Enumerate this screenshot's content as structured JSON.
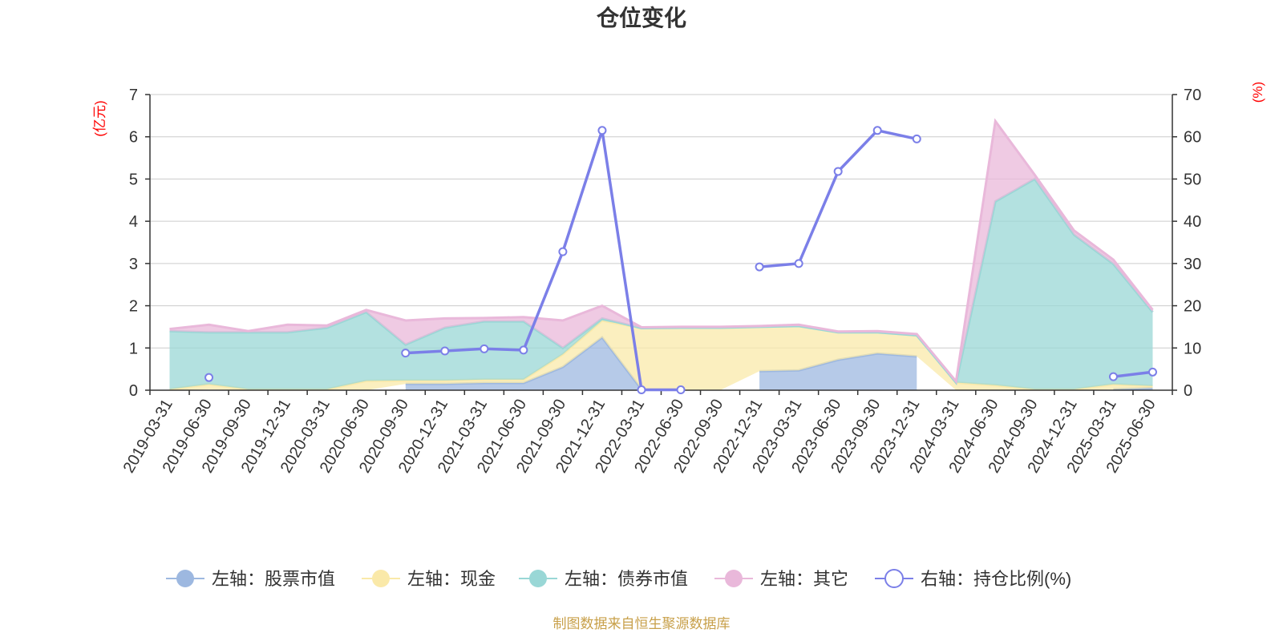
{
  "chart_data": {
    "type": "area",
    "title": "仓位变化",
    "left_unit": "(亿元)",
    "right_unit": "(%)",
    "left_ylim": [
      0,
      7
    ],
    "left_ticks": [
      "0",
      "1",
      "2",
      "3",
      "4",
      "5",
      "6",
      "7"
    ],
    "right_ylim": [
      0,
      70
    ],
    "right_ticks": [
      "0",
      "10",
      "20",
      "30",
      "40",
      "50",
      "60",
      "70"
    ],
    "categories": [
      "2019-03-31",
      "2019-06-30",
      "2019-09-30",
      "2019-12-31",
      "2020-03-31",
      "2020-06-30",
      "2020-09-30",
      "2020-12-31",
      "2021-03-31",
      "2021-06-30",
      "2021-09-30",
      "2021-12-31",
      "2022-03-31",
      "2022-06-30",
      "2022-09-30",
      "2022-12-31",
      "2023-03-31",
      "2023-06-30",
      "2023-09-30",
      "2023-12-31",
      "2024-03-31",
      "2024-06-30",
      "2024-09-30",
      "2024-12-31",
      "2025-03-31",
      "2025-06-30"
    ],
    "series": [
      {
        "name": "左轴：股票市值",
        "axis": "left",
        "color": "#9db8e0",
        "values": [
          null,
          0.02,
          null,
          null,
          null,
          null,
          0.15,
          0.15,
          0.17,
          0.17,
          0.55,
          1.25,
          0.02,
          null,
          null,
          0.45,
          0.47,
          0.72,
          0.87,
          0.8,
          null,
          null,
          null,
          null,
          0.02,
          0.05
        ]
      },
      {
        "name": "左轴：现金",
        "axis": "left",
        "color": "#fae9a9",
        "values": [
          0.02,
          0.12,
          0.02,
          0.02,
          0.02,
          0.22,
          0.08,
          0.08,
          0.08,
          0.08,
          0.3,
          0.4,
          1.45,
          1.48,
          1.48,
          1.05,
          1.05,
          0.65,
          0.5,
          0.5,
          0.18,
          0.12,
          0.02,
          0.02,
          0.12,
          0.05
        ]
      },
      {
        "name": "左轴：债券市值",
        "axis": "left",
        "color": "#99d7d6",
        "values": [
          1.38,
          1.23,
          1.35,
          1.35,
          1.46,
          1.63,
          0.85,
          1.25,
          1.38,
          1.38,
          0.15,
          0.05,
          0,
          0,
          0,
          0,
          0,
          0,
          0,
          0,
          0,
          4.35,
          4.98,
          3.66,
          2.85,
          1.75
        ]
      },
      {
        "name": "左轴：其它",
        "axis": "left",
        "color": "#e9b8da",
        "values": [
          0.05,
          0.18,
          0.03,
          0.18,
          0.05,
          0.05,
          0.57,
          0.22,
          0.08,
          0.1,
          0.65,
          0.3,
          0.02,
          0.02,
          0.02,
          0.02,
          0.03,
          0.02,
          0.03,
          0.03,
          0.03,
          1.9,
          0.1,
          0.1,
          0.1,
          0.05
        ]
      },
      {
        "name": "右轴：持仓比例(%)",
        "axis": "right",
        "color": "#7b7fe8",
        "values": [
          null,
          3,
          null,
          null,
          null,
          null,
          8.8,
          9.3,
          9.8,
          9.5,
          32.8,
          61.5,
          0.1,
          0.1,
          null,
          29.2,
          30,
          51.8,
          61.5,
          59.5,
          null,
          null,
          null,
          null,
          3.2,
          4.3
        ]
      }
    ]
  },
  "source_note": "制图数据来自恒生聚源数据库"
}
